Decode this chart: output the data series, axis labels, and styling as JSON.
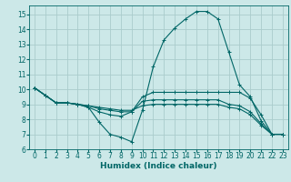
{
  "bg_color": "#cce8e8",
  "grid_color": "#aacccc",
  "line_color": "#006666",
  "xlabel": "Humidex (Indice chaleur)",
  "xlim": [
    -0.5,
    23.5
  ],
  "ylim": [
    6,
    15.6
  ],
  "xticks": [
    0,
    1,
    2,
    3,
    4,
    5,
    6,
    7,
    8,
    9,
    10,
    11,
    12,
    13,
    14,
    15,
    16,
    17,
    18,
    19,
    20,
    21,
    22,
    23
  ],
  "yticks": [
    6,
    7,
    8,
    9,
    10,
    11,
    12,
    13,
    14,
    15
  ],
  "line1": {
    "x": [
      0,
      1,
      2,
      3,
      4,
      5,
      6,
      7,
      8,
      9,
      10,
      11,
      12,
      13,
      14,
      15,
      16,
      17,
      18,
      19,
      20,
      21,
      22,
      23
    ],
    "y": [
      10.1,
      9.6,
      9.1,
      9.1,
      9.0,
      8.8,
      7.8,
      7.0,
      6.8,
      6.5,
      8.6,
      11.5,
      13.3,
      14.1,
      14.7,
      15.2,
      15.2,
      14.7,
      12.5,
      10.3,
      9.5,
      7.9,
      7.0,
      7.0
    ]
  },
  "line2": {
    "x": [
      0,
      1,
      2,
      3,
      4,
      5,
      6,
      7,
      8,
      9,
      10,
      11,
      12,
      13,
      14,
      15,
      16,
      17,
      18,
      19,
      20,
      21,
      22,
      23
    ],
    "y": [
      10.1,
      9.6,
      9.1,
      9.1,
      9.0,
      8.8,
      8.5,
      8.3,
      8.2,
      8.5,
      9.5,
      9.8,
      9.8,
      9.8,
      9.8,
      9.8,
      9.8,
      9.8,
      9.8,
      9.8,
      9.4,
      8.3,
      7.0,
      7.0
    ]
  },
  "line3": {
    "x": [
      0,
      1,
      2,
      3,
      4,
      5,
      6,
      7,
      8,
      9,
      10,
      11,
      12,
      13,
      14,
      15,
      16,
      17,
      18,
      19,
      20,
      21,
      22,
      23
    ],
    "y": [
      10.1,
      9.6,
      9.1,
      9.1,
      9.0,
      8.9,
      8.7,
      8.6,
      8.5,
      8.5,
      9.2,
      9.3,
      9.3,
      9.3,
      9.3,
      9.3,
      9.3,
      9.3,
      9.0,
      8.9,
      8.5,
      7.7,
      7.0,
      7.0
    ]
  },
  "line4": {
    "x": [
      0,
      1,
      2,
      3,
      4,
      5,
      6,
      7,
      8,
      9,
      10,
      11,
      12,
      13,
      14,
      15,
      16,
      17,
      18,
      19,
      20,
      21,
      22,
      23
    ],
    "y": [
      10.1,
      9.6,
      9.1,
      9.1,
      9.0,
      8.9,
      8.8,
      8.7,
      8.6,
      8.6,
      8.9,
      9.0,
      9.0,
      9.0,
      9.0,
      9.0,
      9.0,
      9.0,
      8.8,
      8.7,
      8.3,
      7.6,
      7.0,
      7.0
    ]
  }
}
